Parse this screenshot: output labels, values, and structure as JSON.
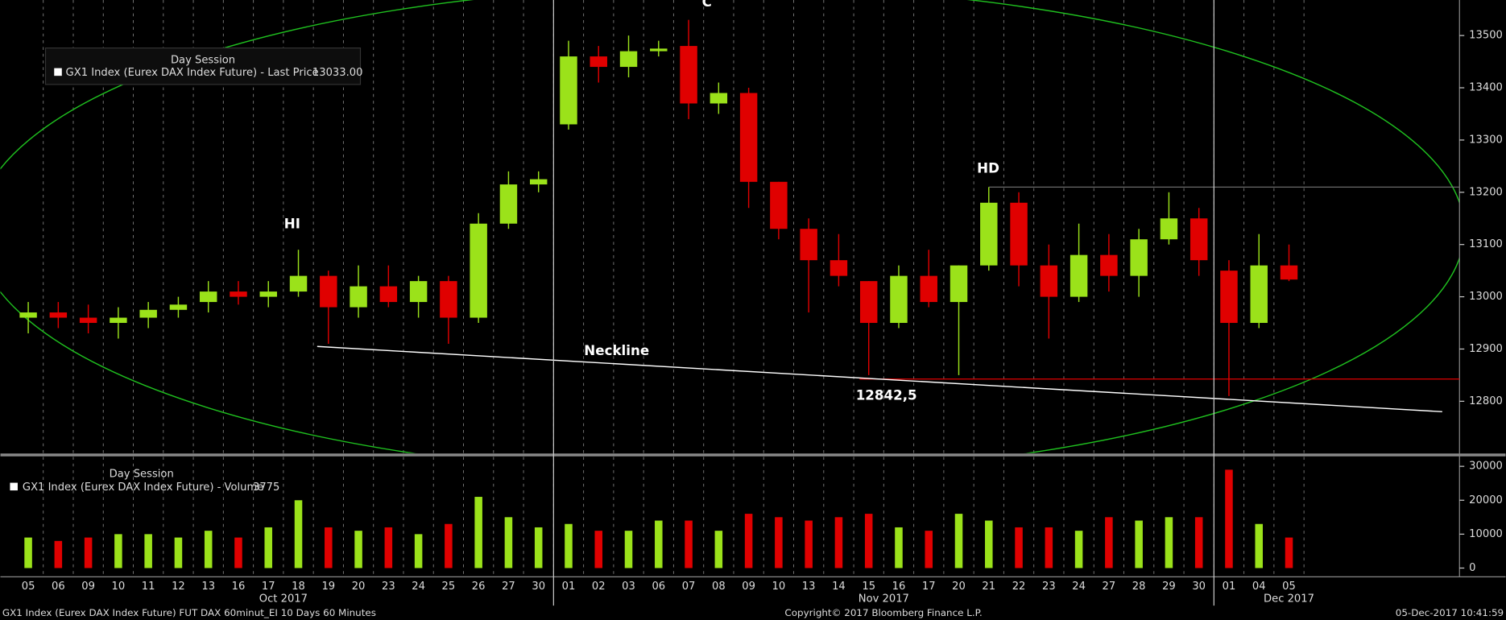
{
  "chart_data": [
    {
      "type": "candlestick",
      "session": "Day Session",
      "legend": "GX1 Index (Eurex DAX Index Future) - Last Price",
      "legend_value": "13033.00",
      "categories": [
        "05",
        "06",
        "09",
        "10",
        "11",
        "12",
        "13",
        "16",
        "17",
        "18",
        "19",
        "20",
        "23",
        "24",
        "25",
        "26",
        "27",
        "30",
        "01",
        "02",
        "03",
        "06",
        "07",
        "08",
        "09",
        "10",
        "13",
        "14",
        "15",
        "16",
        "17",
        "20",
        "21",
        "22",
        "23",
        "24",
        "27",
        "28",
        "29",
        "30",
        "01",
        "04",
        "05"
      ],
      "month_labels": [
        "Oct 2017",
        "Nov 2017",
        "Dec 2017"
      ],
      "open": [
        12960,
        12970,
        12960,
        12950,
        12960,
        12975,
        12990,
        13010,
        13000,
        13010,
        13040,
        12980,
        13020,
        12990,
        13030,
        12960,
        13140,
        13215,
        13330,
        13460,
        13440,
        13470,
        13480,
        13370,
        13390,
        13220,
        13130,
        13070,
        13030,
        12950,
        13040,
        12990,
        13060,
        13180,
        13060,
        13000,
        13080,
        13040,
        13110,
        13150,
        13050,
        12950,
        13060
      ],
      "high": [
        12990,
        12990,
        12985,
        12980,
        12990,
        13000,
        13030,
        13030,
        13030,
        13090,
        13050,
        13060,
        13060,
        13040,
        13040,
        13160,
        13240,
        13240,
        13490,
        13480,
        13500,
        13490,
        13530,
        13410,
        13400,
        13220,
        13150,
        13120,
        13030,
        13060,
        13090,
        13060,
        13210,
        13200,
        13100,
        13140,
        13120,
        13130,
        13200,
        13170,
        13070,
        13120,
        13100
      ],
      "low": [
        12930,
        12940,
        12930,
        12920,
        12940,
        12960,
        12970,
        12985,
        12980,
        13000,
        12910,
        12960,
        12980,
        12960,
        12910,
        12950,
        13130,
        13200,
        13320,
        13410,
        13420,
        13460,
        13340,
        13350,
        13170,
        13110,
        12970,
        13020,
        12850,
        12940,
        12980,
        12850,
        13050,
        13020,
        12920,
        12990,
        13010,
        13000,
        13100,
        13040,
        12810,
        12940,
        13030
      ],
      "close": [
        12970,
        12960,
        12950,
        12960,
        12975,
        12985,
        13010,
        13000,
        13010,
        13040,
        12980,
        13020,
        12990,
        13030,
        12960,
        13140,
        13215,
        13225,
        13460,
        13440,
        13470,
        13475,
        13370,
        13390,
        13220,
        13130,
        13070,
        13040,
        12950,
        13040,
        12990,
        13060,
        13180,
        13060,
        13000,
        13080,
        13040,
        13110,
        13150,
        13070,
        12950,
        13060,
        13033
      ],
      "up_color": "#9be21a",
      "down_color": "#e00000",
      "ylim": [
        12701,
        13568
      ],
      "yticks": [
        12800,
        12900,
        13000,
        13100,
        13200,
        13300,
        13400,
        13500
      ],
      "levels": [
        {
          "value": 12842.5,
          "label": "12842,5",
          "color": "#e00000"
        },
        {
          "value": 13210,
          "color": "#777777"
        }
      ],
      "neckline": {
        "label": "Neckline",
        "values": [
          12905,
          12780
        ],
        "color": "#ffffff"
      },
      "annotations": [
        "HI",
        "C",
        "HD"
      ]
    },
    {
      "type": "bar",
      "session": "Day Session",
      "legend": "GX1 Index (Eurex DAX Index Future) - Volume",
      "legend_value": "3775",
      "values": [
        9000,
        8000,
        9000,
        10000,
        10000,
        9000,
        11000,
        9000,
        12000,
        20000,
        12000,
        11000,
        12000,
        10000,
        13000,
        21000,
        15000,
        12000,
        13000,
        11000,
        11000,
        14000,
        14000,
        11000,
        16000,
        15000,
        14000,
        15000,
        16000,
        12000,
        11000,
        16000,
        14000,
        12000,
        12000,
        11000,
        15000,
        14000,
        15000,
        15000,
        29000,
        13000,
        9000
      ],
      "ylim": [
        -2300,
        32800
      ],
      "yticks": [
        0,
        10000,
        20000,
        30000
      ]
    }
  ],
  "footer": {
    "left": "GX1 Index (Eurex DAX Index Future) FUT DAX 60minut_EI 10 Days 60 Minutes",
    "center": "Copyright© 2017 Bloomberg Finance L.P.",
    "right": "05-Dec-2017 10:41:59"
  }
}
